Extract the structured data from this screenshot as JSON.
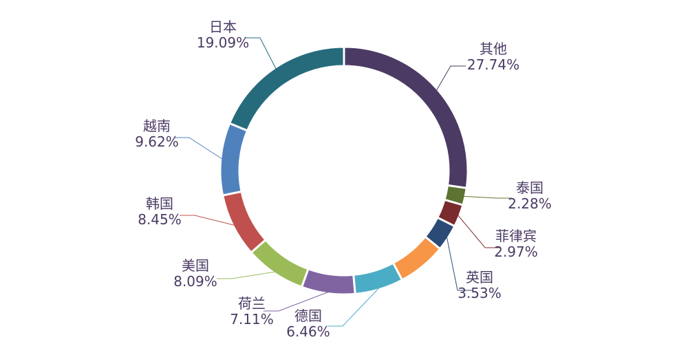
{
  "chart_data": {
    "type": "pie",
    "variant": "donut",
    "title": "",
    "legend": "none",
    "slices": [
      {
        "name": "其他",
        "value": 27.74,
        "label": "27.74%",
        "color": "#4b3a63"
      },
      {
        "name": "泰国",
        "value": 2.28,
        "label": "2.28%",
        "color": "#5e7332"
      },
      {
        "name": "菲律宾",
        "value": 2.97,
        "label": "2.97%",
        "color": "#7a2b2d"
      },
      {
        "name": "英国",
        "value": 3.53,
        "label": "3.53%",
        "color": "#2b4a76"
      },
      {
        "name": "德国",
        "value": 6.46,
        "label": "6.46%",
        "color": "#f79646"
      },
      {
        "name": "德国",
        "value": 6.46,
        "label": "6.46%",
        "color": "#4bacc6"
      },
      {
        "name": "荷兰",
        "value": 7.11,
        "label": "7.11%",
        "color": "#8064a2"
      },
      {
        "name": "美国",
        "value": 8.09,
        "label": "8.09%",
        "color": "#9bbb59"
      },
      {
        "name": "韩国",
        "value": 8.45,
        "label": "8.45%",
        "color": "#c0504d"
      },
      {
        "name": "越南",
        "value": 9.62,
        "label": "9.62%",
        "color": "#4f81bd"
      },
      {
        "name": "日本",
        "value": 19.09,
        "label": "19.09%",
        "color": "#256b7c"
      }
    ]
  }
}
